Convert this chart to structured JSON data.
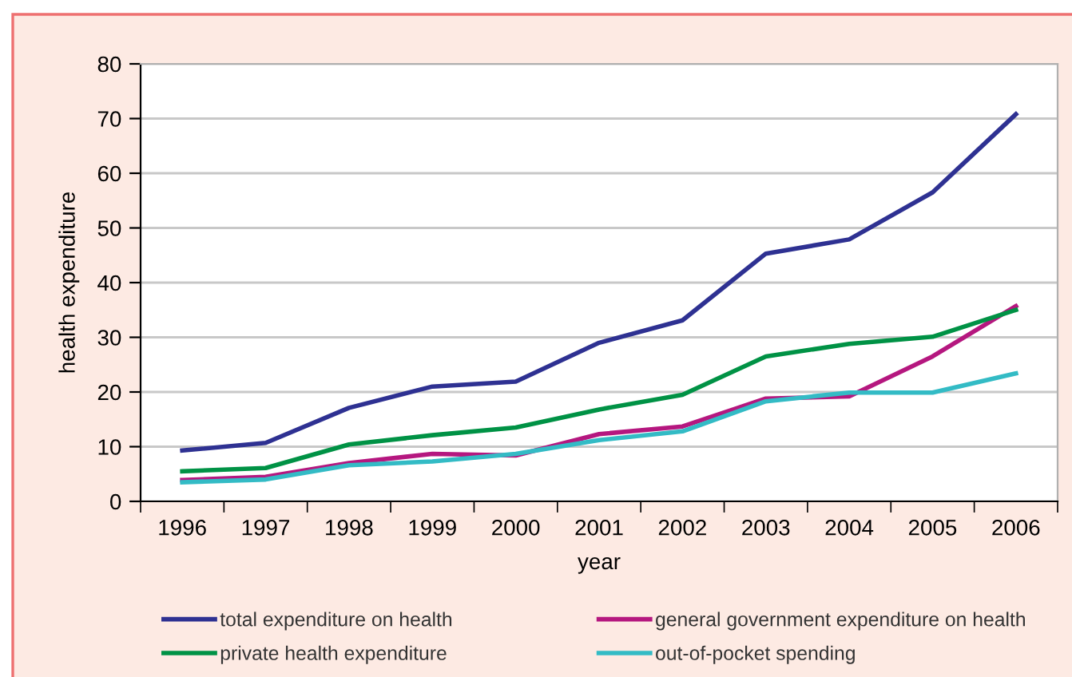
{
  "chart_data": {
    "type": "line",
    "xlabel": "year",
    "ylabel": "health expenditure",
    "categories": [
      "1996",
      "1997",
      "1998",
      "1999",
      "2000",
      "2001",
      "2002",
      "2003",
      "2004",
      "2005",
      "2006"
    ],
    "series": [
      {
        "name": "total expenditure on health",
        "color": "#2e3192",
        "values": [
          9.3,
          10.7,
          17.1,
          21.0,
          21.9,
          29.0,
          33.1,
          45.3,
          47.9,
          56.5,
          70.8
        ]
      },
      {
        "name": "general government expenditure on health",
        "color": "#b5177f",
        "values": [
          3.9,
          4.5,
          7.0,
          8.7,
          8.4,
          12.3,
          13.7,
          18.8,
          19.2,
          26.5,
          35.7
        ]
      },
      {
        "name": "private health expenditure",
        "color": "#009245",
        "values": [
          5.5,
          6.1,
          10.4,
          12.1,
          13.5,
          16.8,
          19.5,
          26.5,
          28.8,
          30.1,
          35.0
        ]
      },
      {
        "name": "out-of-pocket spending",
        "color": "#33bbc5",
        "values": [
          3.5,
          4.0,
          6.6,
          7.3,
          8.7,
          11.2,
          12.8,
          18.3,
          19.9,
          19.9,
          23.4
        ]
      }
    ],
    "ylim": [
      0,
      80
    ],
    "yticks": [
      0,
      10,
      20,
      30,
      40,
      50,
      60,
      70,
      80
    ],
    "grid": "y",
    "legend": "bottom",
    "marker": "none",
    "line_style": "solid"
  }
}
